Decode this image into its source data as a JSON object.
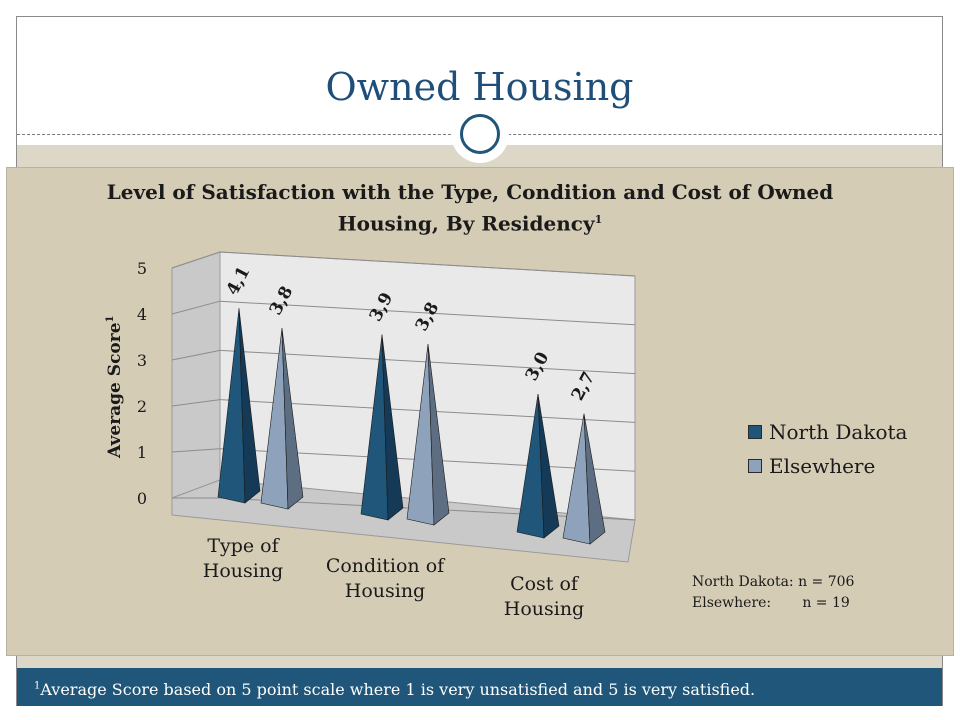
{
  "slide": {
    "title": "Owned Housing",
    "footnote_marker": "1",
    "footnote_text": "Average Score based on 5 point scale where 1 is very unsatisfied and 5 is very satisfied."
  },
  "sample_sizes": [
    {
      "label": "North Dakota:",
      "value": "n = 706"
    },
    {
      "label": "Elsewhere:",
      "value": "n = 19"
    }
  ],
  "colors": {
    "north_dakota": "#1f5679",
    "elsewhere": "#8ea3bb",
    "accent": "#1f4e79",
    "panel": "#d5ccb6"
  },
  "chart_data": {
    "type": "bar",
    "style": "3d-pyramid",
    "title": "Level of Satisfaction with the Type, Condition and Cost of Owned Housing, By Residency",
    "title_marker": "1",
    "ylabel": "Average Score",
    "ylabel_marker": "1",
    "xlabel": "",
    "ylim": [
      0,
      5
    ],
    "yticks": [
      "0",
      "1",
      "2",
      "3",
      "4",
      "5"
    ],
    "categories": [
      "Type of Housing",
      "Condition of Housing",
      "Cost of Housing"
    ],
    "series": [
      {
        "name": "North Dakota",
        "values": [
          4.1,
          3.9,
          3.0
        ],
        "labels": [
          "4,1",
          "3,9",
          "3,0"
        ]
      },
      {
        "name": "Elsewhere",
        "values": [
          3.8,
          3.8,
          2.7
        ],
        "labels": [
          "3,8",
          "3,8",
          "2,7"
        ]
      }
    ],
    "legend_position": "right",
    "grid": true
  }
}
